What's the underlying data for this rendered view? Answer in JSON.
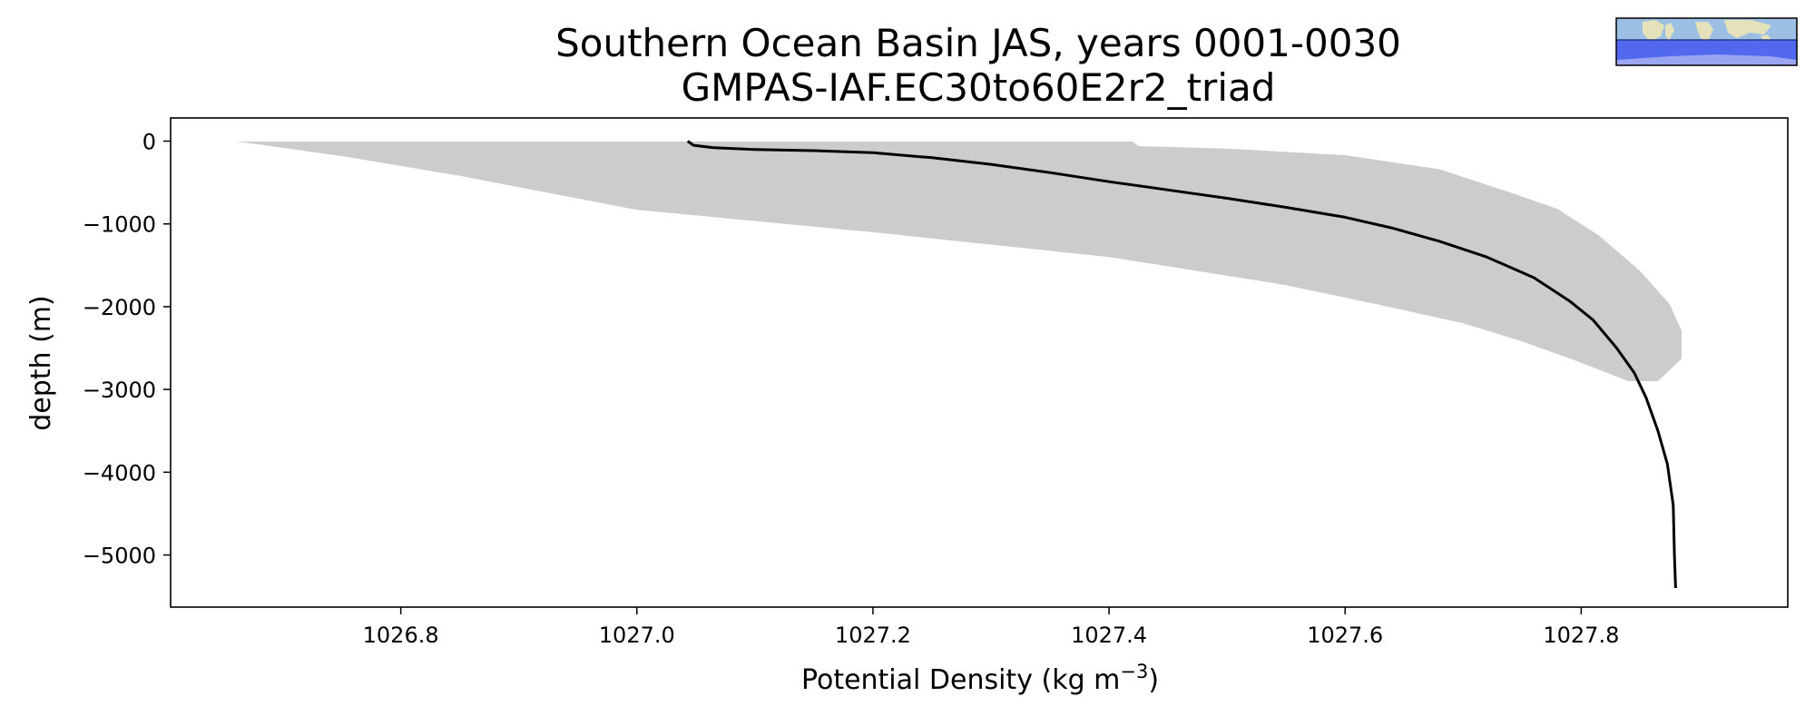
{
  "chart_data": {
    "type": "line",
    "title": "Southern Ocean Basin JAS, years 0001-0030",
    "subtitle": "GMPAS-IAF.EC30to60E2r2_triad",
    "xlabel_main": "Potential Density (kg m",
    "xlabel_sup": "−3",
    "xlabel_close": ")",
    "ylabel": "depth (m)",
    "xlim": [
      1026.605,
      1027.975
    ],
    "ylim": [
      -5630,
      280
    ],
    "xticks": [
      1026.8,
      1027.0,
      1027.2,
      1027.4,
      1027.6,
      1027.8
    ],
    "xtick_labels": [
      "1026.8",
      "1027.0",
      "1027.2",
      "1027.4",
      "1027.6",
      "1027.8"
    ],
    "yticks": [
      0,
      -1000,
      -2000,
      -3000,
      -4000,
      -5000
    ],
    "ytick_labels": [
      "0",
      "−1000",
      "−2000",
      "−3000",
      "−4000",
      "−5000"
    ],
    "grid": false,
    "series": [
      {
        "line_color": "#000000",
        "points": [
          [
            1027.043,
            0
          ],
          [
            1027.048,
            -50
          ],
          [
            1027.065,
            -80
          ],
          [
            1027.1,
            -100
          ],
          [
            1027.15,
            -115
          ],
          [
            1027.2,
            -140
          ],
          [
            1027.25,
            -200
          ],
          [
            1027.3,
            -280
          ],
          [
            1027.35,
            -380
          ],
          [
            1027.4,
            -490
          ],
          [
            1027.45,
            -590
          ],
          [
            1027.5,
            -690
          ],
          [
            1027.55,
            -800
          ],
          [
            1027.6,
            -920
          ],
          [
            1027.64,
            -1050
          ],
          [
            1027.68,
            -1210
          ],
          [
            1027.72,
            -1400
          ],
          [
            1027.76,
            -1650
          ],
          [
            1027.79,
            -1930
          ],
          [
            1027.81,
            -2160
          ],
          [
            1027.83,
            -2500
          ],
          [
            1027.845,
            -2800
          ],
          [
            1027.855,
            -3100
          ],
          [
            1027.865,
            -3500
          ],
          [
            1027.873,
            -3900
          ],
          [
            1027.878,
            -4400
          ],
          [
            1027.879,
            -5000
          ],
          [
            1027.88,
            -5400
          ]
        ]
      }
    ],
    "band": {
      "fill_color": "#cccccc",
      "upper": [
        [
          1026.66,
          -5
        ],
        [
          1027.42,
          -5
        ],
        [
          1027.425,
          -60
        ],
        [
          1027.5,
          -90
        ],
        [
          1027.6,
          -170
        ],
        [
          1027.68,
          -340
        ],
        [
          1027.74,
          -620
        ],
        [
          1027.78,
          -820
        ],
        [
          1027.815,
          -1140
        ],
        [
          1027.85,
          -1570
        ],
        [
          1027.875,
          -1970
        ],
        [
          1027.885,
          -2290
        ],
        [
          1027.885,
          -2630
        ],
        [
          1027.865,
          -2900
        ]
      ],
      "lower": [
        [
          1027.865,
          -2900
        ],
        [
          1027.84,
          -2900
        ],
        [
          1027.795,
          -2650
        ],
        [
          1027.75,
          -2420
        ],
        [
          1027.7,
          -2200
        ],
        [
          1027.63,
          -1980
        ],
        [
          1027.55,
          -1740
        ],
        [
          1027.4,
          -1400
        ],
        [
          1027.2,
          -1100
        ],
        [
          1027.0,
          -830
        ],
        [
          1026.85,
          -420
        ],
        [
          1026.75,
          -180
        ],
        [
          1026.68,
          -40
        ],
        [
          1026.66,
          -5
        ]
      ]
    }
  },
  "inset_map": {
    "ocean_color": "#9cbfe4",
    "land_color": "#ede4b6",
    "region_color": "#4a5ef0"
  }
}
